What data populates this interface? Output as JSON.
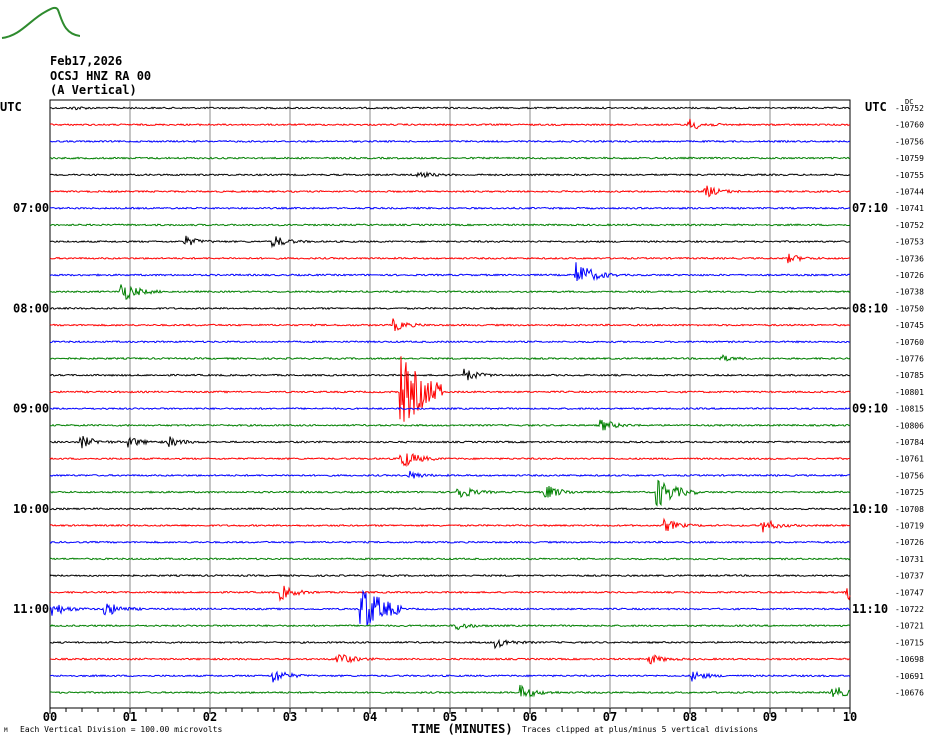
{
  "logo_text": "OPGC",
  "header": {
    "date": "Feb17,2026",
    "station": "OCSJ HNZ RA 00",
    "component": "(A Vertical)"
  },
  "footer": {
    "mark": "M",
    "scale_note": "Each Vertical Division =  100.00 microvolts",
    "clip_note": "Traces clipped at plus/minus 5 vertical divisions"
  },
  "colors": {
    "trace_cycle": [
      "#000000",
      "#ff0000",
      "#0000ff",
      "#008000"
    ],
    "grid": "#888888"
  },
  "chart_data": {
    "type": "line",
    "title": "OCSJ HNZ RA 00",
    "xlabel": "TIME (MINUTES)",
    "xlim": [
      0,
      10
    ],
    "x_ticks": [
      "00",
      "01",
      "02",
      "03",
      "04",
      "05",
      "06",
      "07",
      "08",
      "09",
      "10"
    ],
    "left_axis_title": "UTC",
    "right_axis_title": "UTC",
    "dc_title": "DC",
    "left_time_labels": [
      {
        "trace": 6,
        "label": "07:00"
      },
      {
        "trace": 12,
        "label": "08:00"
      },
      {
        "trace": 18,
        "label": "09:00"
      },
      {
        "trace": 24,
        "label": "10:00"
      },
      {
        "trace": 30,
        "label": "11:00"
      }
    ],
    "right_time_labels": [
      {
        "trace": 6,
        "label": "07:10"
      },
      {
        "trace": 12,
        "label": "08:10"
      },
      {
        "trace": 18,
        "label": "09:10"
      },
      {
        "trace": 24,
        "label": "10:10"
      },
      {
        "trace": 30,
        "label": "11:10"
      }
    ],
    "dc_offsets": [
      "-10752",
      "-10760",
      "-10756",
      "-10759",
      "-10755",
      "-10744",
      "-10741",
      "-10752",
      "-10753",
      "-10736",
      "-10726",
      "-10738",
      "-10750",
      "-10745",
      "-10760",
      "-10776",
      "-10785",
      "-10801",
      "-10815",
      "-10806",
      "-10784",
      "-10761",
      "-10756",
      "-10725",
      "-10708",
      "-10719",
      "-10726",
      "-10731",
      "-10737",
      "-10747",
      "-10722",
      "-10721",
      "-10715",
      "-10698",
      "-10691",
      "-10676"
    ],
    "events": [
      {
        "trace": 0,
        "minute": 0.3,
        "amp": 3
      },
      {
        "trace": 1,
        "minute": 8.0,
        "amp": 12
      },
      {
        "trace": 4,
        "minute": 4.6,
        "amp": 8
      },
      {
        "trace": 5,
        "minute": 8.2,
        "amp": 12
      },
      {
        "trace": 8,
        "minute": 1.7,
        "amp": 10
      },
      {
        "trace": 8,
        "minute": 2.8,
        "amp": 12
      },
      {
        "trace": 9,
        "minute": 9.25,
        "amp": 8
      },
      {
        "trace": 10,
        "minute": 6.6,
        "amp": 25
      },
      {
        "trace": 11,
        "minute": 0.9,
        "amp": 20
      },
      {
        "trace": 13,
        "minute": 4.3,
        "amp": 12
      },
      {
        "trace": 15,
        "minute": 8.4,
        "amp": 6
      },
      {
        "trace": 16,
        "minute": 5.2,
        "amp": 12
      },
      {
        "trace": 17,
        "minute": 4.4,
        "amp": 70
      },
      {
        "trace": 19,
        "minute": 6.9,
        "amp": 12
      },
      {
        "trace": 20,
        "minute": 0.4,
        "amp": 12
      },
      {
        "trace": 20,
        "minute": 1.0,
        "amp": 10
      },
      {
        "trace": 20,
        "minute": 1.5,
        "amp": 10
      },
      {
        "trace": 21,
        "minute": 4.4,
        "amp": 20
      },
      {
        "trace": 22,
        "minute": 4.5,
        "amp": 8
      },
      {
        "trace": 23,
        "minute": 5.1,
        "amp": 15
      },
      {
        "trace": 23,
        "minute": 6.2,
        "amp": 15
      },
      {
        "trace": 23,
        "minute": 7.6,
        "amp": 30
      },
      {
        "trace": 25,
        "minute": 7.7,
        "amp": 12
      },
      {
        "trace": 25,
        "minute": 8.9,
        "amp": 14
      },
      {
        "trace": 29,
        "minute": 2.9,
        "amp": 14
      },
      {
        "trace": 29,
        "minute": 9.98,
        "amp": 14
      },
      {
        "trace": 30,
        "minute": 0.02,
        "amp": 15
      },
      {
        "trace": 30,
        "minute": 0.7,
        "amp": 15
      },
      {
        "trace": 30,
        "minute": 3.9,
        "amp": 50
      },
      {
        "trace": 31,
        "minute": 5.1,
        "amp": 8
      },
      {
        "trace": 32,
        "minute": 5.6,
        "amp": 10
      },
      {
        "trace": 33,
        "minute": 3.6,
        "amp": 14
      },
      {
        "trace": 33,
        "minute": 7.5,
        "amp": 10
      },
      {
        "trace": 34,
        "minute": 2.8,
        "amp": 14
      },
      {
        "trace": 34,
        "minute": 8.05,
        "amp": 10
      },
      {
        "trace": 35,
        "minute": 5.9,
        "amp": 14
      },
      {
        "trace": 35,
        "minute": 9.8,
        "amp": 14
      }
    ]
  }
}
